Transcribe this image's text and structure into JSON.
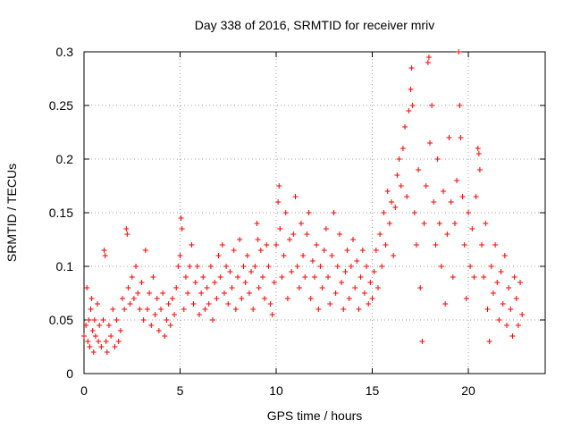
{
  "chart_data": {
    "type": "scatter",
    "title": "Day 338 of 2016, SRMTID for receiver mriv",
    "xlabel": "GPS time / hours",
    "ylabel": "SRMTID / TECUs",
    "xlim": [
      0,
      24
    ],
    "ylim": [
      0,
      0.3
    ],
    "xticks": [
      0,
      5,
      10,
      15,
      20
    ],
    "xtick_labels": [
      "0",
      "5",
      "10",
      "15",
      "20"
    ],
    "yticks": [
      0,
      0.05,
      0.1,
      0.15,
      0.2,
      0.25,
      0.3
    ],
    "ytick_labels": [
      "0",
      "0.05",
      "0.1",
      "0.15",
      "0.2",
      "0.25",
      "0.3"
    ],
    "grid": true,
    "marker": "plus",
    "colors": {
      "series": "#ff0000",
      "grid": "#a0a0a0",
      "axis": "#000000"
    },
    "series": [
      {
        "name": "SRMTID",
        "points": [
          [
            0.0,
            0.035
          ],
          [
            0.1,
            0.045
          ],
          [
            0.15,
            0.08
          ],
          [
            0.2,
            0.03
          ],
          [
            0.25,
            0.05
          ],
          [
            0.3,
            0.025
          ],
          [
            0.35,
            0.06
          ],
          [
            0.4,
            0.07
          ],
          [
            0.45,
            0.04
          ],
          [
            0.5,
            0.02
          ],
          [
            0.55,
            0.05
          ],
          [
            0.6,
            0.035
          ],
          [
            0.7,
            0.065
          ],
          [
            0.75,
            0.03
          ],
          [
            0.8,
            0.045
          ],
          [
            0.9,
            0.025
          ],
          [
            1.0,
            0.05
          ],
          [
            1.05,
            0.115
          ],
          [
            1.1,
            0.11
          ],
          [
            1.15,
            0.03
          ],
          [
            1.2,
            0.02
          ],
          [
            1.3,
            0.045
          ],
          [
            1.4,
            0.035
          ],
          [
            1.5,
            0.06
          ],
          [
            1.6,
            0.025
          ],
          [
            1.7,
            0.05
          ],
          [
            1.8,
            0.03
          ],
          [
            1.9,
            0.04
          ],
          [
            2.0,
            0.07
          ],
          [
            2.1,
            0.06
          ],
          [
            2.2,
            0.135
          ],
          [
            2.25,
            0.13
          ],
          [
            2.3,
            0.08
          ],
          [
            2.4,
            0.065
          ],
          [
            2.5,
            0.09
          ],
          [
            2.6,
            0.07
          ],
          [
            2.7,
            0.1
          ],
          [
            2.8,
            0.075
          ],
          [
            2.9,
            0.06
          ],
          [
            3.0,
            0.085
          ],
          [
            3.1,
            0.05
          ],
          [
            3.2,
            0.115
          ],
          [
            3.3,
            0.06
          ],
          [
            3.4,
            0.075
          ],
          [
            3.5,
            0.045
          ],
          [
            3.6,
            0.09
          ],
          [
            3.7,
            0.055
          ],
          [
            3.8,
            0.07
          ],
          [
            3.9,
            0.04
          ],
          [
            4.0,
            0.06
          ],
          [
            4.1,
            0.075
          ],
          [
            4.2,
            0.035
          ],
          [
            4.3,
            0.05
          ],
          [
            4.4,
            0.065
          ],
          [
            4.5,
            0.045
          ],
          [
            4.6,
            0.07
          ],
          [
            4.7,
            0.055
          ],
          [
            4.8,
            0.08
          ],
          [
            4.9,
            0.1
          ],
          [
            5.0,
            0.11
          ],
          [
            5.05,
            0.145
          ],
          [
            5.1,
            0.135
          ],
          [
            5.2,
            0.06
          ],
          [
            5.3,
            0.09
          ],
          [
            5.4,
            0.075
          ],
          [
            5.5,
            0.1
          ],
          [
            5.6,
            0.12
          ],
          [
            5.7,
            0.065
          ],
          [
            5.8,
            0.085
          ],
          [
            5.9,
            0.1
          ],
          [
            6.0,
            0.055
          ],
          [
            6.1,
            0.075
          ],
          [
            6.2,
            0.09
          ],
          [
            6.3,
            0.06
          ],
          [
            6.4,
            0.08
          ],
          [
            6.5,
            0.065
          ],
          [
            6.6,
            0.1
          ],
          [
            6.7,
            0.05
          ],
          [
            6.8,
            0.085
          ],
          [
            6.9,
            0.07
          ],
          [
            7.0,
            0.11
          ],
          [
            7.1,
            0.09
          ],
          [
            7.2,
            0.12
          ],
          [
            7.3,
            0.075
          ],
          [
            7.4,
            0.1
          ],
          [
            7.5,
            0.065
          ],
          [
            7.6,
            0.095
          ],
          [
            7.7,
            0.08
          ],
          [
            7.8,
            0.115
          ],
          [
            7.9,
            0.06
          ],
          [
            8.0,
            0.09
          ],
          [
            8.1,
            0.125
          ],
          [
            8.2,
            0.07
          ],
          [
            8.3,
            0.1
          ],
          [
            8.4,
            0.085
          ],
          [
            8.5,
            0.11
          ],
          [
            8.6,
            0.075
          ],
          [
            8.7,
            0.095
          ],
          [
            8.8,
            0.06
          ],
          [
            8.9,
            0.1
          ],
          [
            9.0,
            0.14
          ],
          [
            9.05,
            0.125
          ],
          [
            9.1,
            0.08
          ],
          [
            9.2,
            0.115
          ],
          [
            9.3,
            0.09
          ],
          [
            9.4,
            0.07
          ],
          [
            9.5,
            0.12
          ],
          [
            9.6,
            0.1
          ],
          [
            9.7,
            0.065
          ],
          [
            9.8,
            0.055
          ],
          [
            9.9,
            0.085
          ],
          [
            10.0,
            0.12
          ],
          [
            10.1,
            0.16
          ],
          [
            10.15,
            0.175
          ],
          [
            10.2,
            0.135
          ],
          [
            10.3,
            0.09
          ],
          [
            10.4,
            0.11
          ],
          [
            10.5,
            0.15
          ],
          [
            10.6,
            0.07
          ],
          [
            10.7,
            0.125
          ],
          [
            10.8,
            0.095
          ],
          [
            10.9,
            0.13
          ],
          [
            11.0,
            0.165
          ],
          [
            11.1,
            0.1
          ],
          [
            11.2,
            0.08
          ],
          [
            11.3,
            0.14
          ],
          [
            11.4,
            0.11
          ],
          [
            11.5,
            0.09
          ],
          [
            11.6,
            0.13
          ],
          [
            11.7,
            0.15
          ],
          [
            11.8,
            0.07
          ],
          [
            11.9,
            0.105
          ],
          [
            12.0,
            0.09
          ],
          [
            12.1,
            0.12
          ],
          [
            12.2,
            0.06
          ],
          [
            12.3,
            0.1
          ],
          [
            12.4,
            0.08
          ],
          [
            12.5,
            0.115
          ],
          [
            12.6,
            0.135
          ],
          [
            12.7,
            0.09
          ],
          [
            12.8,
            0.065
          ],
          [
            12.9,
            0.11
          ],
          [
            13.0,
            0.15
          ],
          [
            13.1,
            0.075
          ],
          [
            13.2,
            0.1
          ],
          [
            13.3,
            0.13
          ],
          [
            13.4,
            0.085
          ],
          [
            13.5,
            0.06
          ],
          [
            13.6,
            0.095
          ],
          [
            13.7,
            0.115
          ],
          [
            13.8,
            0.07
          ],
          [
            13.9,
            0.1
          ],
          [
            14.0,
            0.125
          ],
          [
            14.1,
            0.08
          ],
          [
            14.2,
            0.105
          ],
          [
            14.3,
            0.06
          ],
          [
            14.4,
            0.09
          ],
          [
            14.5,
            0.115
          ],
          [
            14.6,
            0.075
          ],
          [
            14.7,
            0.1
          ],
          [
            14.8,
            0.065
          ],
          [
            14.9,
            0.085
          ],
          [
            15.0,
            0.07
          ],
          [
            15.1,
            0.095
          ],
          [
            15.2,
            0.115
          ],
          [
            15.3,
            0.08
          ],
          [
            15.4,
            0.13
          ],
          [
            15.5,
            0.1
          ],
          [
            15.6,
            0.15
          ],
          [
            15.7,
            0.12
          ],
          [
            15.8,
            0.17
          ],
          [
            15.9,
            0.14
          ],
          [
            16.0,
            0.16
          ],
          [
            16.1,
            0.11
          ],
          [
            16.2,
            0.155
          ],
          [
            16.3,
            0.185
          ],
          [
            16.4,
            0.2
          ],
          [
            16.5,
            0.175
          ],
          [
            16.6,
            0.21
          ],
          [
            16.7,
            0.23
          ],
          [
            16.8,
            0.165
          ],
          [
            16.9,
            0.245
          ],
          [
            17.0,
            0.265
          ],
          [
            17.05,
            0.285
          ],
          [
            17.1,
            0.25
          ],
          [
            17.2,
            0.15
          ],
          [
            17.3,
            0.12
          ],
          [
            17.4,
            0.19
          ],
          [
            17.5,
            0.08
          ],
          [
            17.6,
            0.03
          ],
          [
            17.7,
            0.14
          ],
          [
            17.8,
            0.175
          ],
          [
            17.9,
            0.29
          ],
          [
            17.95,
            0.295
          ],
          [
            18.0,
            0.215
          ],
          [
            18.1,
            0.25
          ],
          [
            18.2,
            0.16
          ],
          [
            18.3,
            0.12
          ],
          [
            18.4,
            0.2
          ],
          [
            18.5,
            0.14
          ],
          [
            18.6,
            0.1
          ],
          [
            18.7,
            0.17
          ],
          [
            18.8,
            0.065
          ],
          [
            18.9,
            0.13
          ],
          [
            19.0,
            0.22
          ],
          [
            19.1,
            0.16
          ],
          [
            19.2,
            0.09
          ],
          [
            19.3,
            0.14
          ],
          [
            19.4,
            0.18
          ],
          [
            19.5,
            0.3
          ],
          [
            19.55,
            0.25
          ],
          [
            19.6,
            0.22
          ],
          [
            19.7,
            0.165
          ],
          [
            19.8,
            0.12
          ],
          [
            19.9,
            0.07
          ],
          [
            20.0,
            0.15
          ],
          [
            20.1,
            0.1
          ],
          [
            20.2,
            0.135
          ],
          [
            20.3,
            0.09
          ],
          [
            20.4,
            0.165
          ],
          [
            20.5,
            0.21
          ],
          [
            20.55,
            0.205
          ],
          [
            20.6,
            0.19
          ],
          [
            20.7,
            0.12
          ],
          [
            20.8,
            0.09
          ],
          [
            20.9,
            0.14
          ],
          [
            21.0,
            0.06
          ],
          [
            21.1,
            0.03
          ],
          [
            21.2,
            0.1
          ],
          [
            21.3,
            0.075
          ],
          [
            21.4,
            0.12
          ],
          [
            21.5,
            0.085
          ],
          [
            21.6,
            0.05
          ],
          [
            21.7,
            0.095
          ],
          [
            21.8,
            0.065
          ],
          [
            21.9,
            0.11
          ],
          [
            22.0,
            0.045
          ],
          [
            22.1,
            0.08
          ],
          [
            22.2,
            0.06
          ],
          [
            22.3,
            0.035
          ],
          [
            22.4,
            0.09
          ],
          [
            22.5,
            0.07
          ],
          [
            22.6,
            0.045
          ],
          [
            22.7,
            0.085
          ],
          [
            22.8,
            0.055
          ]
        ]
      }
    ]
  }
}
